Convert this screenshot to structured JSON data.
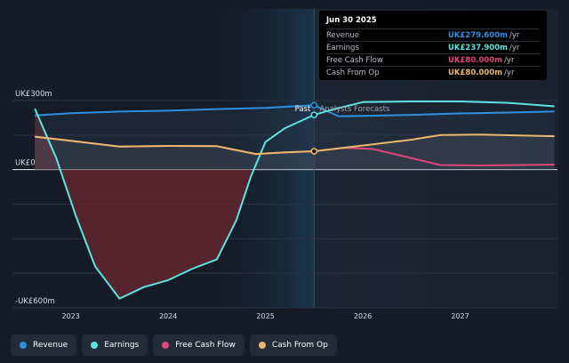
{
  "chart_data": {
    "type": "line",
    "y_labels": {
      "top": "UK£300m",
      "zero": "UK£0",
      "bottom": "-UK£600m"
    },
    "ylim": [
      -600,
      300
    ],
    "xlim": [
      2022.4,
      2028.0
    ],
    "x_tick_labels": [
      "2023",
      "2024",
      "2025",
      "2026",
      "2027"
    ],
    "x_tick_values": [
      2023,
      2024,
      2025,
      2026,
      2027
    ],
    "past_label": "Past",
    "forecast_label": "Analysts Forecasts",
    "divider_x": 2025.5,
    "series": [
      {
        "name": "Revenue",
        "color": "#2f8fe0",
        "points": [
          [
            2022.63,
            235
          ],
          [
            2023.0,
            245
          ],
          [
            2023.5,
            252
          ],
          [
            2024.0,
            256
          ],
          [
            2024.5,
            263
          ],
          [
            2025.0,
            268
          ],
          [
            2025.5,
            279.6
          ],
          [
            2025.75,
            232
          ],
          [
            2026.0,
            233
          ],
          [
            2026.5,
            238
          ],
          [
            2027.0,
            244
          ],
          [
            2027.5,
            248
          ],
          [
            2027.97,
            253
          ]
        ]
      },
      {
        "name": "Earnings",
        "color": "#5ee4e0",
        "points": [
          [
            2022.63,
            265
          ],
          [
            2022.85,
            50
          ],
          [
            2023.05,
            -200
          ],
          [
            2023.25,
            -420
          ],
          [
            2023.5,
            -560
          ],
          [
            2023.75,
            -510
          ],
          [
            2024.0,
            -480
          ],
          [
            2024.25,
            -430
          ],
          [
            2024.5,
            -390
          ],
          [
            2024.7,
            -220
          ],
          [
            2024.85,
            -30
          ],
          [
            2025.0,
            120
          ],
          [
            2025.2,
            180
          ],
          [
            2025.5,
            237.9
          ],
          [
            2025.7,
            262
          ],
          [
            2026.0,
            293
          ],
          [
            2026.5,
            296
          ],
          [
            2027.0,
            296
          ],
          [
            2027.5,
            290
          ],
          [
            2027.97,
            275
          ]
        ]
      },
      {
        "name": "Free Cash Flow",
        "color": "#e0457b",
        "points": [
          [
            2022.63,
            143
          ],
          [
            2023.0,
            125
          ],
          [
            2023.5,
            100
          ],
          [
            2024.0,
            103
          ],
          [
            2024.5,
            102
          ],
          [
            2024.9,
            68
          ],
          [
            2025.2,
            75
          ],
          [
            2025.5,
            80
          ],
          [
            2025.8,
            95
          ],
          [
            2026.1,
            90
          ],
          [
            2026.4,
            60
          ],
          [
            2026.8,
            20
          ],
          [
            2027.2,
            18
          ],
          [
            2027.97,
            22
          ]
        ]
      },
      {
        "name": "Cash From Op",
        "color": "#e8b86d",
        "points": [
          [
            2022.63,
            143
          ],
          [
            2023.0,
            125
          ],
          [
            2023.5,
            100
          ],
          [
            2024.0,
            103
          ],
          [
            2024.5,
            102
          ],
          [
            2024.9,
            68
          ],
          [
            2025.2,
            75
          ],
          [
            2025.5,
            80
          ],
          [
            2025.8,
            95
          ],
          [
            2026.1,
            110
          ],
          [
            2026.5,
            130
          ],
          [
            2026.8,
            150
          ],
          [
            2027.2,
            152
          ],
          [
            2027.97,
            145
          ]
        ]
      }
    ]
  },
  "tooltip": {
    "date": "Jun 30 2025",
    "rows": [
      {
        "label": "Revenue",
        "value": "UK£279.600m",
        "unit": "/yr",
        "color": "#2f8fe0"
      },
      {
        "label": "Earnings",
        "value": "UK£237.900m",
        "unit": "/yr",
        "color": "#5ee4e0"
      },
      {
        "label": "Free Cash Flow",
        "value": "UK£80.000m",
        "unit": "/yr",
        "color": "#e0457b"
      },
      {
        "label": "Cash From Op",
        "value": "UK£80.000m",
        "unit": "/yr",
        "color": "#e8b86d"
      }
    ]
  },
  "legend": [
    {
      "label": "Revenue",
      "color": "#2f8fe0"
    },
    {
      "label": "Earnings",
      "color": "#5ee4e0"
    },
    {
      "label": "Free Cash Flow",
      "color": "#e0457b"
    },
    {
      "label": "Cash From Op",
      "color": "#e8b86d"
    }
  ]
}
